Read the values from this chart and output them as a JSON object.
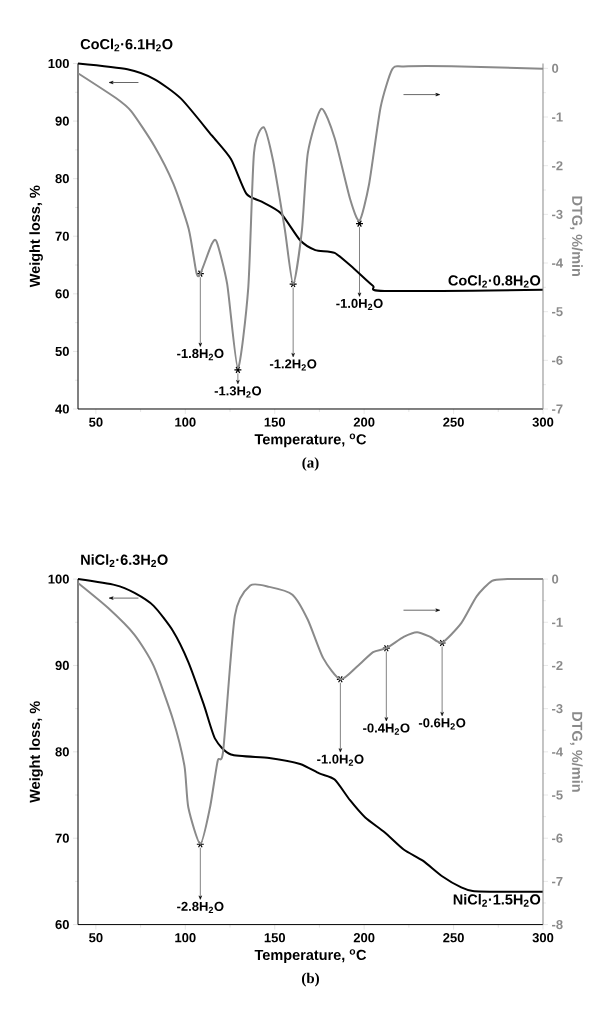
{
  "chart_data": [
    {
      "type": "line",
      "title": "CoCl$_{2}$·6.1H$_{2}$O",
      "xlabel": "Temperature, $^{o}$C",
      "ylabel": "Weight loss, %",
      "y2label": "DTG, %/min",
      "xlim": [
        40,
        300
      ],
      "xticks": [
        50,
        100,
        150,
        200,
        250,
        300
      ],
      "ylim": [
        40,
        100
      ],
      "yticks": [
        40,
        50,
        60,
        70,
        80,
        90,
        100
      ],
      "y2lim": [
        -7,
        0.1
      ],
      "y2ticks": [
        -7,
        -6,
        -5,
        -4,
        -3,
        -2,
        -1,
        0
      ],
      "series": [
        {
          "color": "#000000",
          "x": [
            40,
            67.6,
            82.6,
            97.6,
            114.8,
            125.5,
            134.1,
            142.7,
            153.4,
            164.2,
            172.7,
            183.5,
            194.2,
            204.9,
            211.4,
            300
          ],
          "values": [
            100,
            99.0,
            97.3,
            93.9,
            87.5,
            83.4,
            77.4,
            76.0,
            74.0,
            69.3,
            67.6,
            67.1,
            64.4,
            61.4,
            60.5,
            60.7
          ]
        },
        {
          "color": "#8a8a8a",
          "axis": "y2",
          "x": [
            40,
            61.2,
            69.7,
            82.6,
            93.3,
            101.9,
            106.2,
            108.4,
            114.8,
            117.6,
            123.4,
            129.4,
            135.2,
            138.4,
            143.8,
            149.1,
            155.6,
            160.3,
            165.2,
            168.5,
            176.0,
            183.5,
            192.1,
            197.4,
            202.8,
            209.2,
            215.7,
            222.1,
            254.3,
            300
          ],
          "values": [
            -0.1,
            -0.61,
            -0.88,
            -1.59,
            -2.37,
            -3.3,
            -4.2,
            -4.22,
            -3.61,
            -3.57,
            -4.43,
            -6.16,
            -4.51,
            -1.74,
            -1.21,
            -1.9,
            -3.3,
            -4.43,
            -3.33,
            -1.74,
            -0.83,
            -1.43,
            -2.68,
            -3.13,
            -2.37,
            -0.8,
            -0.02,
            0.04,
            0.04,
            -0.01
          ]
        }
      ],
      "annotations": [
        {
          "text": "-1.8H$_{2}$O",
          "x": 108.4,
          "y": 63.5
        },
        {
          "text": "-1.3H$_{2}$O",
          "x": 129.4,
          "y": 46.8
        },
        {
          "text": "-1.2H$_{2}$O",
          "x": 160.3,
          "y": 61.7
        },
        {
          "text": "-1.0H$_{2}$O",
          "x": 197.4,
          "y": 72.2
        },
        {
          "text": "CoCl$_{2}$·0.8H$_{2}$O",
          "x": 300,
          "y": 60.7
        },
        "(a)"
      ]
    },
    {
      "type": "line",
      "title": "NiCl$_{2}$·6.3H$_{2}$O",
      "xlabel": "Temperature, $^{o}$C",
      "ylabel": "Weight loss, %",
      "y2label": "DTG, %/min",
      "xlim": [
        40,
        300
      ],
      "xticks": [
        50,
        100,
        150,
        200,
        250,
        300
      ],
      "ylim": [
        60,
        100
      ],
      "yticks": [
        60,
        70,
        80,
        90,
        100
      ],
      "y2lim": [
        -8,
        0
      ],
      "y2ticks": [
        -8,
        -7,
        -6,
        -5,
        -4,
        -3,
        -2,
        -1,
        0
      ],
      "series": [
        {
          "color": "#000000",
          "x": [
            40,
            60.8,
            71.6,
            82.3,
            93.1,
            101.7,
            110.3,
            116.7,
            125.5,
            146.9,
            164.2,
            174.9,
            183.5,
            192.1,
            200.6,
            211.4,
            222.1,
            232.8,
            243.6,
            254.3,
            260.7,
            275.8,
            300
          ],
          "values": [
            100,
            99.3,
            98.4,
            96.9,
            94.0,
            90.4,
            85.5,
            81.5,
            79.7,
            79.3,
            78.6,
            77.5,
            76.8,
            74.4,
            72.4,
            70.7,
            68.7,
            67.4,
            65.6,
            64.3,
            63.9,
            63.8,
            63.8
          ]
        },
        {
          "color": "#8a8a8a",
          "axis": "y2",
          "x": [
            40,
            56.9,
            71.6,
            82.3,
            93.1,
            99.5,
            101.7,
            108.4,
            113.8,
            118.1,
            121.2,
            127.7,
            136.3,
            147.0,
            159.9,
            168.5,
            177.1,
            186.7,
            196.4,
            205.0,
            212.4,
            222.1,
            229.6,
            237.1,
            243.6,
            254.3,
            262.9,
            271.5,
            280.1,
            300
          ],
          "values": [
            -0.09,
            -0.67,
            -1.29,
            -2.01,
            -3.25,
            -4.32,
            -5.29,
            -6.13,
            -5.29,
            -4.21,
            -3.97,
            -0.85,
            -0.15,
            -0.18,
            -0.36,
            -0.94,
            -1.83,
            -2.32,
            -2.01,
            -1.69,
            -1.6,
            -1.34,
            -1.23,
            -1.34,
            -1.47,
            -1.02,
            -0.4,
            -0.04,
            0,
            0
          ]
        }
      ],
      "annotations": [
        {
          "text": "-2.8H$_{2}$O",
          "x": 108.4,
          "y": 69.3
        },
        {
          "text": "-1.0H$_{2}$O",
          "x": 186.7,
          "y": 88.4
        },
        {
          "text": "-0.4H$_{2}$O",
          "x": 212.4,
          "y": 92.0
        },
        {
          "text": "-0.6H$_{2}$O",
          "x": 243.6,
          "y": 92.6
        },
        {
          "text": "NiCl$_{2}$·1.5H$_{2}$O",
          "x": 300,
          "y": 63.8
        },
        "(b)"
      ]
    }
  ]
}
